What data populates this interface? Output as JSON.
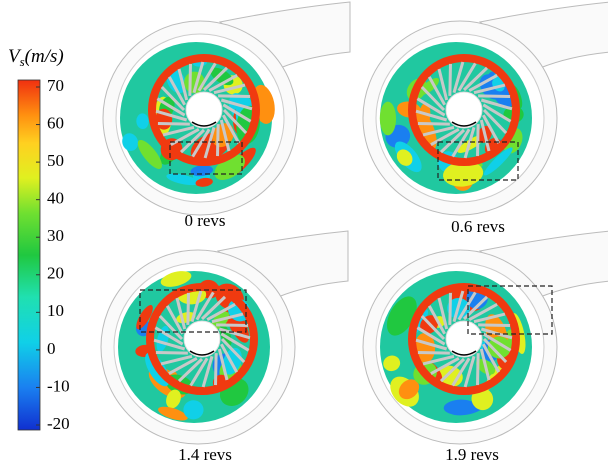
{
  "colorbar": {
    "title": {
      "symbol": "V",
      "subscript": "s",
      "unit": "(m/s)"
    },
    "ticks": [
      70,
      60,
      50,
      40,
      30,
      20,
      10,
      0,
      -10,
      -20
    ]
  },
  "panels": [
    {
      "label": "0 revs"
    },
    {
      "label": "0.6 revs"
    },
    {
      "label": "1.4 revs"
    },
    {
      "label": "1.9 revs"
    }
  ]
}
